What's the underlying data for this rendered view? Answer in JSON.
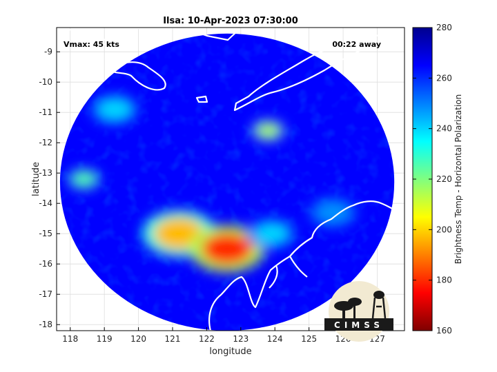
{
  "chart_data": {
    "type": "heatmap",
    "title": "Ilsa: 10-Apr-2023 07:30:00",
    "xlabel": "longitude",
    "ylabel": "latitude",
    "xlim": [
      117.6,
      127.8
    ],
    "ylim": [
      -18.2,
      -8.2
    ],
    "x_ticks": [
      118,
      119,
      120,
      121,
      122,
      123,
      124,
      125,
      126,
      127
    ],
    "y_ticks": [
      -9,
      -10,
      -11,
      -12,
      -13,
      -14,
      -15,
      -16,
      -17,
      -18
    ],
    "grid": true,
    "annotations": {
      "vmax": "Vmax: 45 kts",
      "time_away": "00:22 away"
    },
    "colorbar": {
      "label": "Brightness Temp - Horizontal Polarization",
      "min": 160,
      "max": 280,
      "ticks": [
        160,
        180,
        200,
        220,
        240,
        260,
        280
      ],
      "colors": [
        "#7f0000",
        "#ff0000",
        "#ff8000",
        "#ffff00",
        "#80ff80",
        "#00ffff",
        "#0080ff",
        "#0000ff",
        "#00008f"
      ]
    },
    "swath": {
      "center_lon": 122.6,
      "center_lat": -13.3,
      "radius_lon": 4.9,
      "radius_lat": 4.9,
      "background_value": 265,
      "features": [
        {
          "lon": 121.2,
          "lat": -15.0,
          "value": 197
        },
        {
          "lon": 122.6,
          "lat": -15.5,
          "value": 180
        },
        {
          "lon": 123.8,
          "lat": -11.6,
          "value": 215
        },
        {
          "lon": 118.4,
          "lat": -13.2,
          "value": 225
        },
        {
          "lon": 119.3,
          "lat": -10.9,
          "value": 240
        },
        {
          "lon": 123.9,
          "lat": -15.0,
          "value": 240
        },
        {
          "lon": 125.7,
          "lat": -14.3,
          "value": 248
        }
      ]
    },
    "logo": "CIMSS"
  }
}
